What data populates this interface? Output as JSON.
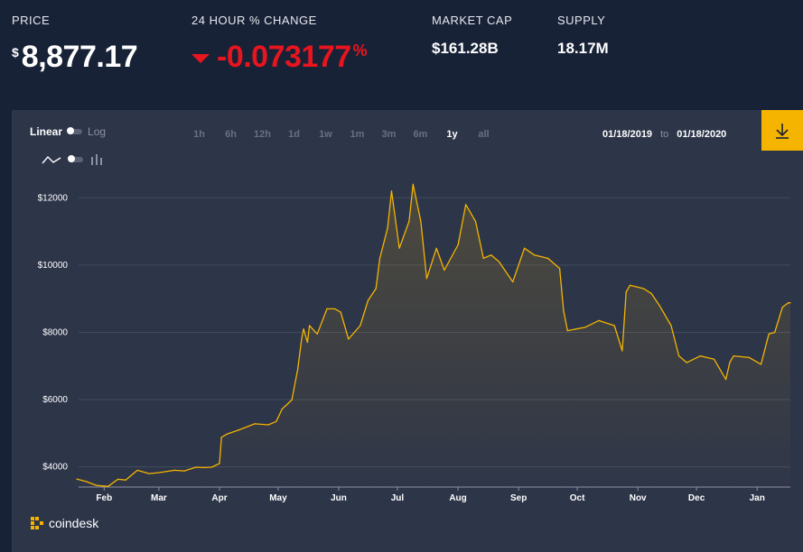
{
  "stats": {
    "price": {
      "label": "PRICE",
      "currency": "$",
      "value": "8,877.17"
    },
    "change": {
      "label": "24 HOUR % CHANGE",
      "value": "-0.073177",
      "unit": "%",
      "direction": "down",
      "color": "#e8141e"
    },
    "market_cap": {
      "label": "MARKET CAP",
      "value": "$161.28B"
    },
    "supply": {
      "label": "SUPPLY",
      "value": "18.17M"
    }
  },
  "controls": {
    "scale": {
      "linear_label": "Linear",
      "log_label": "Log",
      "selected": "Linear"
    },
    "chart_type": {
      "line_icon": "line-chart-icon",
      "bar_icon": "candle-chart-icon",
      "selected": "line"
    },
    "ranges": [
      "1h",
      "6h",
      "12h",
      "1d",
      "1w",
      "1m",
      "3m",
      "6m",
      "1y",
      "all"
    ],
    "selected_range": "1y",
    "date_from": "01/18/2019",
    "date_to_label": "to",
    "date_to": "01/18/2020",
    "download_icon": "download-icon",
    "accent_color": "#f5b400"
  },
  "brand": {
    "name": "coindesk",
    "icon": "coindesk-logo-icon"
  },
  "chart_data": {
    "type": "area",
    "title": "",
    "xlabel": "",
    "ylabel": "",
    "x_tick_labels": [
      "Feb",
      "Mar",
      "Apr",
      "May",
      "Jun",
      "Jul",
      "Aug",
      "Sep",
      "Oct",
      "Nov",
      "Dec",
      "Jan"
    ],
    "y_tick_labels": [
      "$4000",
      "$6000",
      "$8000",
      "$10000",
      "$12000"
    ],
    "y_ticks": [
      4000,
      6000,
      8000,
      10000,
      12000
    ],
    "ylim": [
      3400,
      13000
    ],
    "grid": true,
    "line_color": "#f5b400",
    "series": [
      {
        "x": [
          "2019-01-18",
          "2019-01-23",
          "2019-01-28",
          "2019-02-03",
          "2019-02-08",
          "2019-02-12",
          "2019-02-18",
          "2019-02-24",
          "2019-03-01",
          "2019-03-09",
          "2019-03-14",
          "2019-03-20",
          "2019-03-24",
          "2019-03-28",
          "2019-04-01",
          "2019-04-02",
          "2019-04-05",
          "2019-04-11",
          "2019-04-19",
          "2019-04-26",
          "2019-04-30",
          "2019-05-03",
          "2019-05-08",
          "2019-05-11",
          "2019-05-13",
          "2019-05-14",
          "2019-05-16",
          "2019-05-17",
          "2019-05-21",
          "2019-05-26",
          "2019-05-30",
          "2019-06-02",
          "2019-06-06",
          "2019-06-12",
          "2019-06-16",
          "2019-06-20",
          "2019-06-22",
          "2019-06-26",
          "2019-06-28",
          "2019-07-02",
          "2019-07-07",
          "2019-07-09",
          "2019-07-13",
          "2019-07-16",
          "2019-07-21",
          "2019-07-25",
          "2019-08-01",
          "2019-08-05",
          "2019-08-10",
          "2019-08-14",
          "2019-08-18",
          "2019-08-22",
          "2019-08-29",
          "2019-09-04",
          "2019-09-09",
          "2019-09-16",
          "2019-09-22",
          "2019-09-24",
          "2019-09-26",
          "2019-10-05",
          "2019-10-12",
          "2019-10-20",
          "2019-10-24",
          "2019-10-26",
          "2019-10-28",
          "2019-11-04",
          "2019-11-08",
          "2019-11-12",
          "2019-11-18",
          "2019-11-22",
          "2019-11-26",
          "2019-12-03",
          "2019-12-10",
          "2019-12-16",
          "2019-12-18",
          "2019-12-20",
          "2019-12-28",
          "2020-01-03",
          "2020-01-07",
          "2020-01-10",
          "2020-01-14",
          "2020-01-17",
          "2020-01-18"
        ],
        "values": [
          3640,
          3560,
          3450,
          3420,
          3630,
          3610,
          3900,
          3800,
          3830,
          3900,
          3880,
          3990,
          3980,
          3990,
          4100,
          4880,
          4980,
          5100,
          5280,
          5250,
          5350,
          5720,
          5990,
          6900,
          7800,
          8100,
          7700,
          8200,
          7950,
          8700,
          8700,
          8600,
          7800,
          8200,
          8950,
          9300,
          10200,
          11100,
          12200,
          10500,
          11300,
          12400,
          11300,
          9600,
          10500,
          9850,
          10600,
          11800,
          11300,
          10200,
          10300,
          10100,
          9500,
          10500,
          10300,
          10200,
          9900,
          8650,
          8050,
          8150,
          8350,
          8200,
          7450,
          9200,
          9400,
          9300,
          9150,
          8800,
          8200,
          7300,
          7100,
          7300,
          7200,
          6600,
          7100,
          7300,
          7250,
          7050,
          7950,
          8000,
          8750,
          8880,
          8877
        ]
      }
    ]
  }
}
